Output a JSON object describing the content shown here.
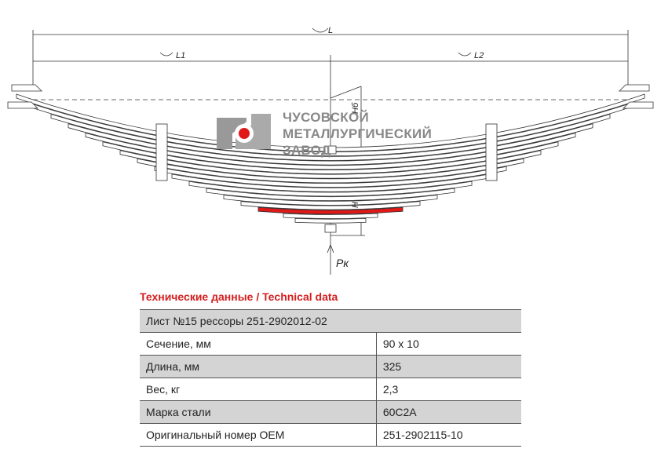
{
  "drawing": {
    "dimensions": {
      "total": "L",
      "left": "L1",
      "right": "L2",
      "height": "H",
      "height_top": "Hб",
      "load": "Pк"
    }
  },
  "logo": {
    "lines": [
      "ЧУСОВСКОЙ",
      "МЕТАЛЛУРГИЧЕСКИЙ",
      "ЗАВОД"
    ]
  },
  "table": {
    "title": "Технические данные / Technical data",
    "header": "Лист №15 рессоры 251-2902012-02",
    "rows": [
      [
        "Сечение, мм",
        "90 x 10"
      ],
      [
        "Длина, мм",
        "325"
      ],
      [
        "Вес, кг",
        "2,3"
      ],
      [
        "Марка стали",
        "60С2А"
      ],
      [
        "Оригинальный номер OEM",
        "251-2902115-10"
      ]
    ]
  }
}
